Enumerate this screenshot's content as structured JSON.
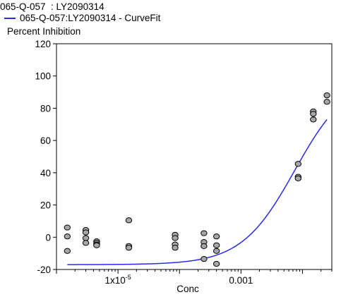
{
  "chart_data": {
    "type": "scatter",
    "title": "065-Q-057  : LY2090314",
    "legend": {
      "label": "065-Q-057:LY2090314 - CurveFit",
      "color": "#2a2af0",
      "placement": "top-left"
    },
    "ylabel": "Percent Inhibition",
    "xlabel": "Conc",
    "x_scale": "log",
    "xlim": [
      1e-06,
      0.03
    ],
    "ylim": [
      -20,
      120
    ],
    "y_ticks": [
      -20,
      0,
      20,
      40,
      60,
      80,
      100,
      120
    ],
    "x_tick_labels": [
      {
        "value": 1e-05,
        "label": "1x10",
        "exp": "-5"
      },
      {
        "value": 0.001,
        "label": "0.001",
        "exp": ""
      }
    ],
    "grid": false,
    "point_color": "#a6a6a6",
    "series": [
      {
        "type": "scatter",
        "points": [
          {
            "x": 1.5e-06,
            "y": 6
          },
          {
            "x": 1.5e-06,
            "y": 0.5
          },
          {
            "x": 1.5e-06,
            "y": -8.5
          },
          {
            "x": 3e-06,
            "y": 4.5
          },
          {
            "x": 3e-06,
            "y": 3
          },
          {
            "x": 3e-06,
            "y": -0.5
          },
          {
            "x": 3e-06,
            "y": -3.5
          },
          {
            "x": 4.5e-06,
            "y": -2.5
          },
          {
            "x": 4.5e-06,
            "y": -3.5
          },
          {
            "x": 4.5e-06,
            "y": -4.5
          },
          {
            "x": 4.5e-06,
            "y": -5
          },
          {
            "x": 1.5e-05,
            "y": 10.5
          },
          {
            "x": 1.5e-05,
            "y": -5.5
          },
          {
            "x": 1.5e-05,
            "y": -6.5
          },
          {
            "x": 8.5e-05,
            "y": 1.5
          },
          {
            "x": 8.5e-05,
            "y": -0.5
          },
          {
            "x": 8.5e-05,
            "y": -4.5
          },
          {
            "x": 8.5e-05,
            "y": -6.5
          },
          {
            "x": 0.00025,
            "y": 2.5
          },
          {
            "x": 0.00025,
            "y": -3
          },
          {
            "x": 0.00025,
            "y": -5.5
          },
          {
            "x": 0.00025,
            "y": -13.5
          },
          {
            "x": 0.0004,
            "y": 0.5
          },
          {
            "x": 0.0004,
            "y": -5
          },
          {
            "x": 0.0004,
            "y": -8.5
          },
          {
            "x": 0.0004,
            "y": -16.5
          },
          {
            "x": 0.0085,
            "y": 45.5
          },
          {
            "x": 0.0085,
            "y": 37.5
          },
          {
            "x": 0.0085,
            "y": 36.5
          },
          {
            "x": 0.015,
            "y": 78
          },
          {
            "x": 0.015,
            "y": 76.5
          },
          {
            "x": 0.015,
            "y": 73
          },
          {
            "x": 0.025,
            "y": 88
          },
          {
            "x": 0.025,
            "y": 84
          }
        ]
      },
      {
        "type": "line",
        "curve": "four-parameter-logistic",
        "fit": {
          "bottom": -17,
          "top": 100,
          "ec50": 0.0075,
          "hill": 1.0
        },
        "x_range": [
          1.5e-06,
          0.025
        ]
      }
    ]
  }
}
